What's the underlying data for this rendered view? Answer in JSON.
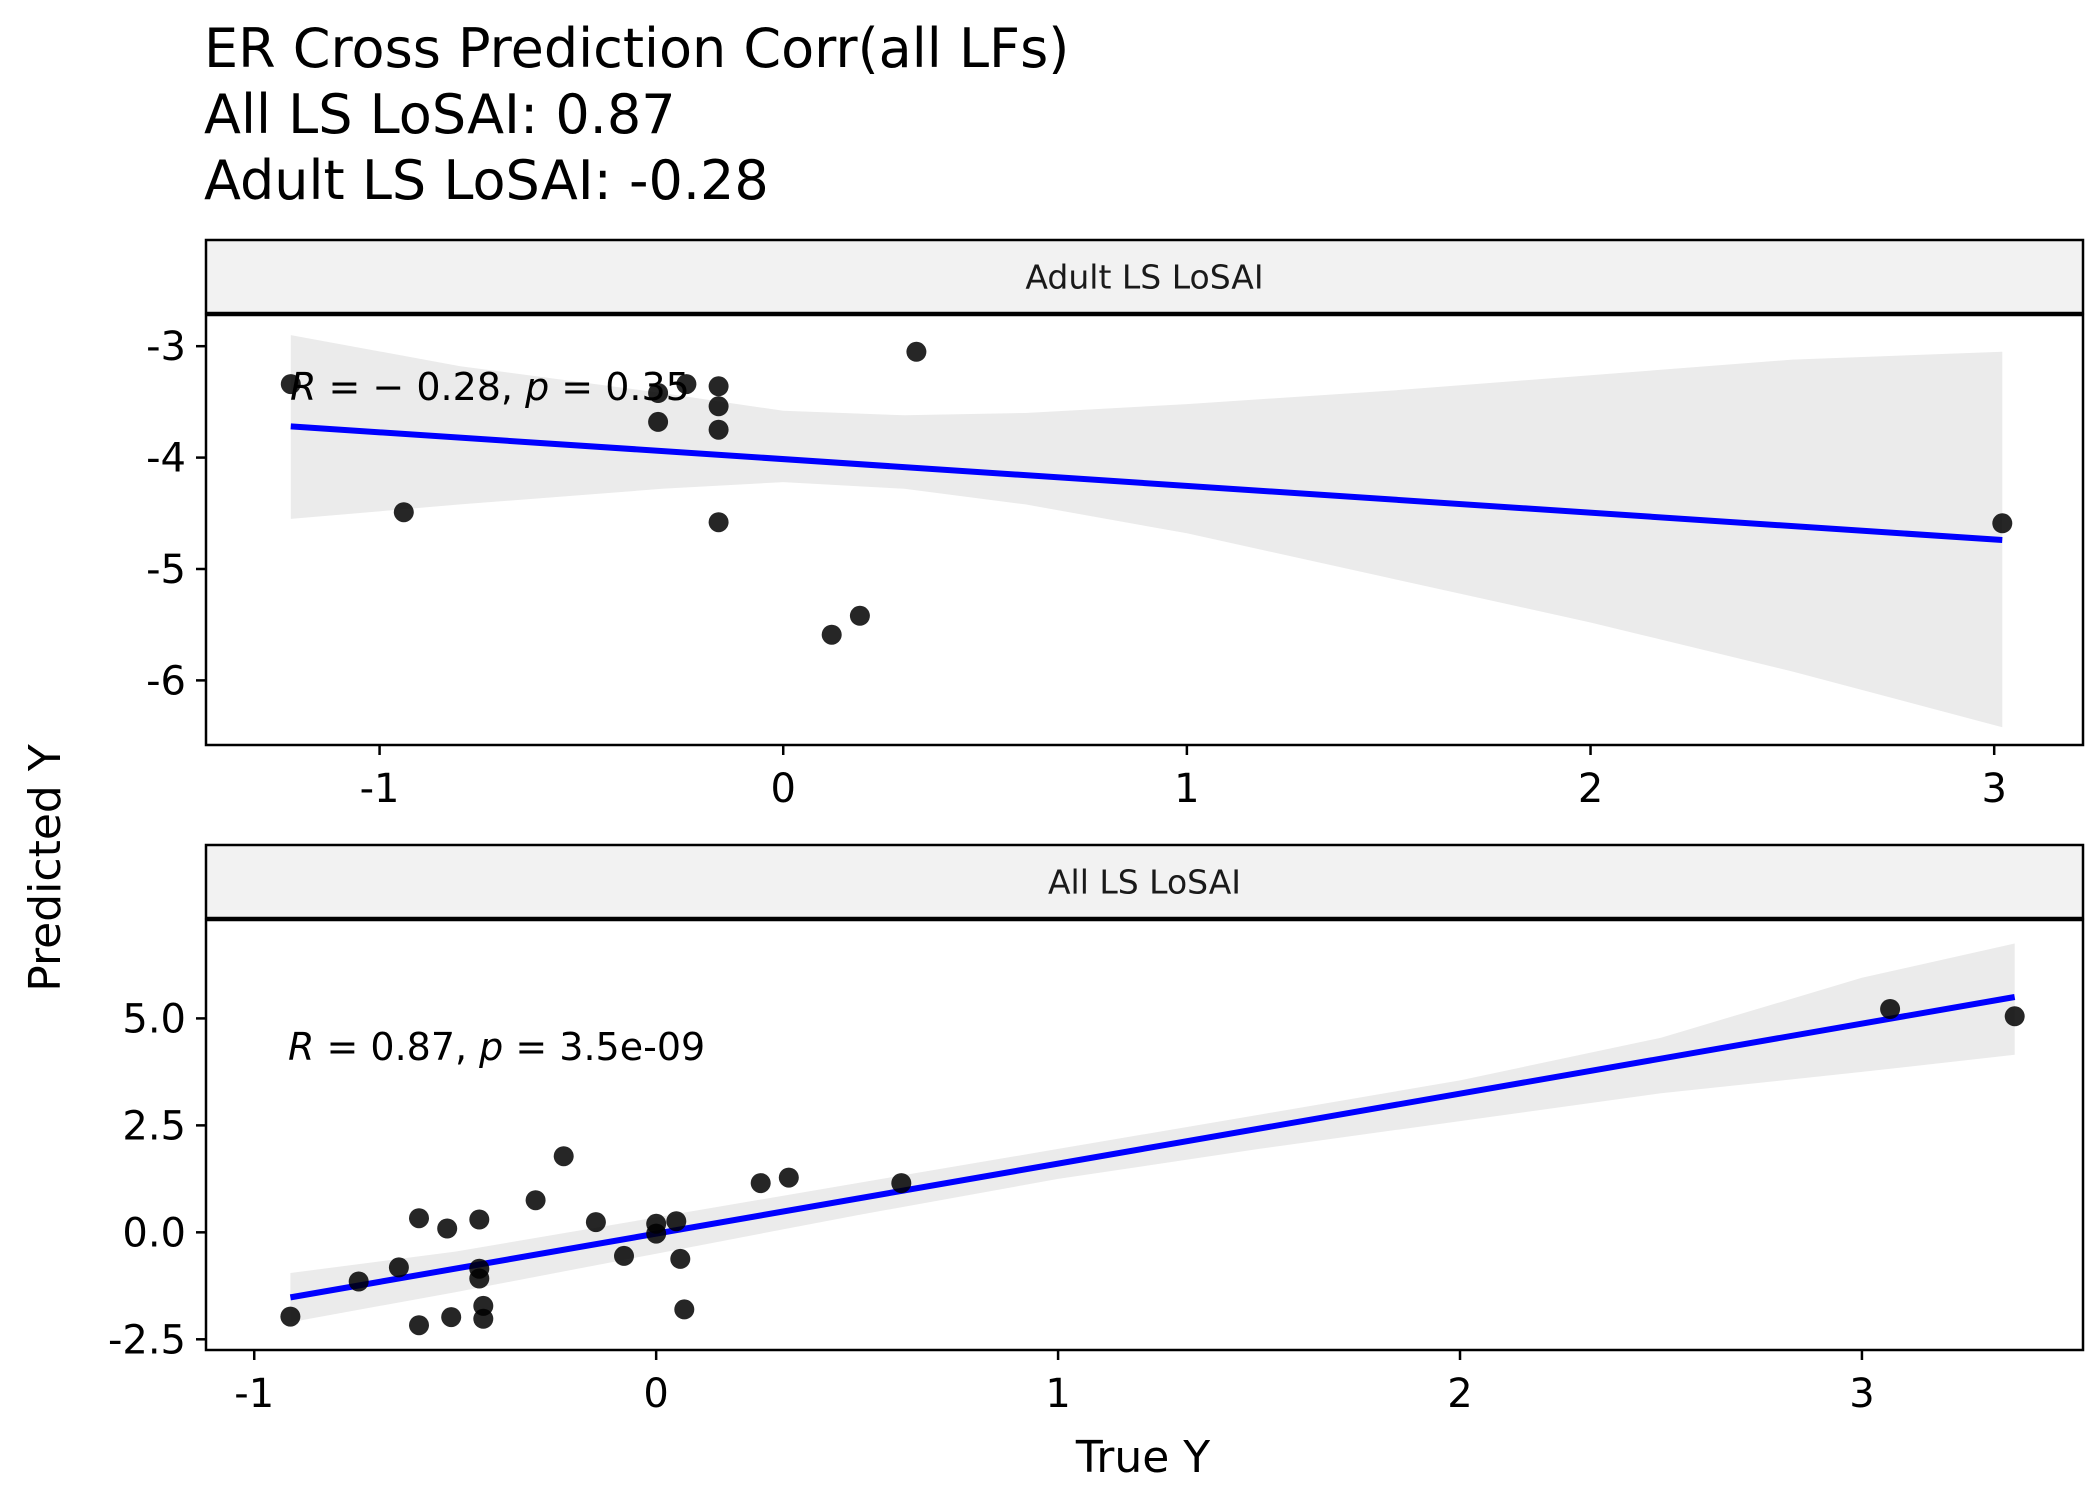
{
  "chart_data": {
    "type": "scatter",
    "title_lines": [
      "ER Cross Prediction Corr(all LFs)",
      "All LS LoSAI: 0.87",
      "Adult LS LoSAI: -0.28"
    ],
    "xlabel": "True Y",
    "ylabel": "Predicted Y",
    "colors": {
      "point": "#000000",
      "fit_line": "#0000ff",
      "ci_band": "#ebebeb",
      "strip_fill": "#f2f2f2"
    },
    "panels": [
      {
        "strip": "Adult LS LoSAI",
        "stat": {
          "r_label": "R",
          "r_value": "− 0.28,",
          "p_label": "p",
          "p_value": "0.35"
        },
        "xlim": [
          -1.43,
          3.22
        ],
        "ylim": [
          -6.58,
          -2.72
        ],
        "x_ticks": [
          -1,
          0,
          1,
          2,
          3
        ],
        "x_tick_labels": [
          "-1",
          "0",
          "1",
          "2",
          "3"
        ],
        "y_ticks": [
          -6,
          -5,
          -4,
          -3
        ],
        "y_tick_labels": [
          "-6",
          "-5",
          "-4",
          "-3"
        ],
        "fit": {
          "x": [
            -1.22,
            3.02
          ],
          "y": [
            -3.72,
            -4.74
          ]
        },
        "ci": {
          "x": [
            -1.22,
            -0.8,
            -0.3,
            0.0,
            0.3,
            0.6,
            1.0,
            1.5,
            2.0,
            2.5,
            3.02
          ],
          "lower": [
            -4.55,
            -4.42,
            -4.28,
            -4.22,
            -4.28,
            -4.42,
            -4.68,
            -5.08,
            -5.48,
            -5.92,
            -6.42
          ],
          "upper": [
            -2.9,
            -3.18,
            -3.42,
            -3.58,
            -3.62,
            -3.6,
            -3.52,
            -3.4,
            -3.26,
            -3.12,
            -3.05
          ]
        },
        "points": {
          "x": [
            -1.22,
            -0.94,
            -0.31,
            -0.31,
            -0.24,
            -0.16,
            -0.16,
            -0.16,
            -0.16,
            0.12,
            0.19,
            0.33,
            3.02
          ],
          "y": [
            -3.34,
            -4.49,
            -3.68,
            -3.42,
            -3.34,
            -3.36,
            -3.54,
            -3.75,
            -4.58,
            -5.59,
            -5.42,
            -3.05,
            -4.59
          ]
        }
      },
      {
        "strip": "All LS LoSAI",
        "stat": {
          "r_label": "R",
          "r_value": "0.87,",
          "p_label": "p",
          "p_value": "3.5e-09"
        },
        "xlim": [
          -1.12,
          3.55
        ],
        "ylim": [
          -2.75,
          7.3
        ],
        "x_ticks": [
          -1,
          0,
          1,
          2,
          3
        ],
        "x_tick_labels": [
          "-1",
          "0",
          "1",
          "2",
          "3"
        ],
        "y_ticks": [
          -2.5,
          0.0,
          2.5,
          5.0
        ],
        "y_tick_labels": [
          "-2.5",
          "0.0",
          "2.5",
          "5.0"
        ],
        "fit": {
          "x": [
            -0.91,
            3.38
          ],
          "y": [
            -1.52,
            5.5
          ]
        },
        "ci": {
          "x": [
            -0.91,
            -0.5,
            0.0,
            0.5,
            1.0,
            1.5,
            2.0,
            2.5,
            3.0,
            3.38
          ],
          "lower": [
            -2.1,
            -1.4,
            -0.5,
            0.4,
            1.25,
            1.95,
            2.6,
            3.25,
            3.75,
            4.15
          ],
          "upper": [
            -0.95,
            -0.45,
            0.35,
            1.15,
            1.95,
            2.75,
            3.55,
            4.55,
            5.95,
            6.75
          ]
        },
        "points": {
          "x": [
            -0.91,
            -0.74,
            -0.64,
            -0.59,
            -0.59,
            -0.52,
            -0.51,
            -0.44,
            -0.44,
            -0.44,
            -0.43,
            -0.43,
            -0.3,
            -0.23,
            -0.15,
            -0.08,
            0.0,
            0.0,
            0.05,
            0.06,
            0.07,
            0.26,
            0.33,
            0.61,
            3.07,
            3.38
          ],
          "y": [
            -1.97,
            -1.15,
            -0.82,
            0.33,
            -2.17,
            0.09,
            -1.98,
            -1.08,
            -0.85,
            0.3,
            -1.72,
            -2.02,
            0.75,
            1.78,
            0.24,
            -0.55,
            0.2,
            -0.03,
            0.26,
            -0.62,
            -1.8,
            1.15,
            1.28,
            1.15,
            5.22,
            5.05
          ]
        }
      }
    ]
  }
}
